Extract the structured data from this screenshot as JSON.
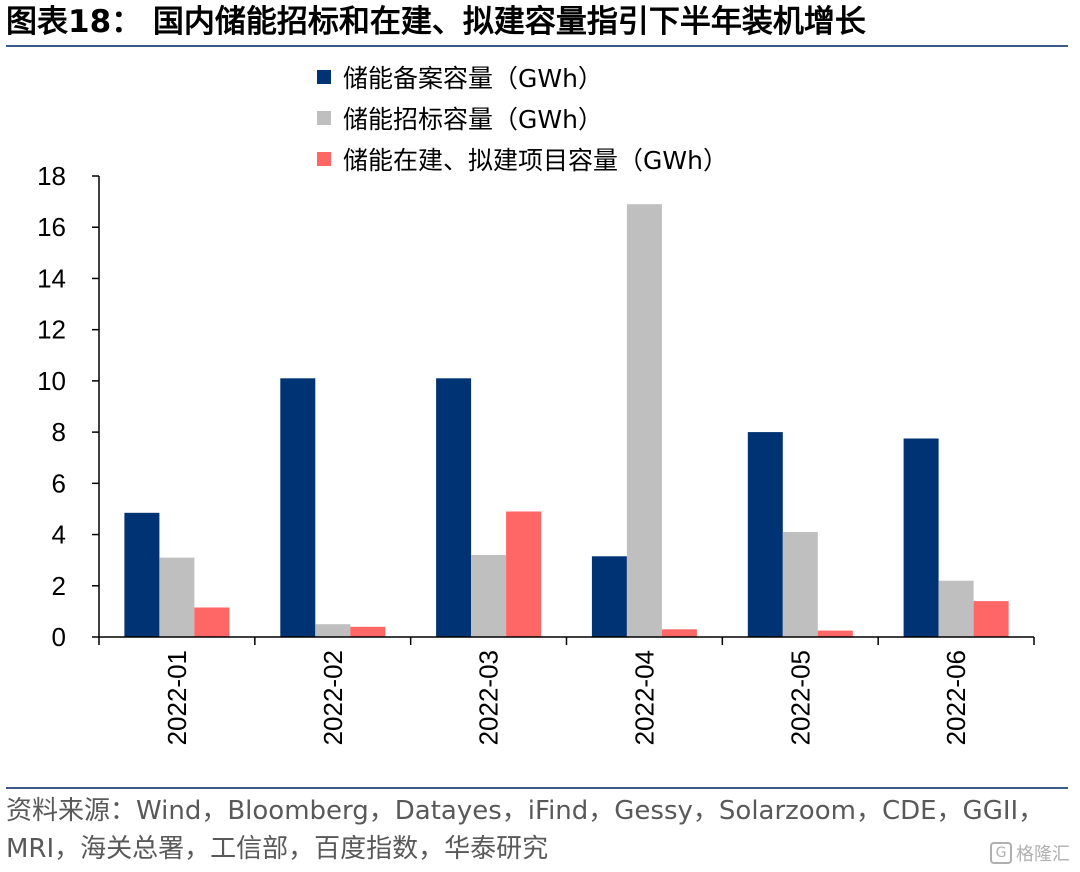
{
  "title": "图表18：  国内储能招标和在建、拟建容量指引下半年装机增长",
  "chart_data": {
    "type": "bar",
    "categories": [
      "2022-01",
      "2022-02",
      "2022-03",
      "2022-04",
      "2022-05",
      "2022-06"
    ],
    "series": [
      {
        "name": "储能备案容量（GWh）",
        "color": "#003373",
        "values": [
          4.85,
          10.1,
          10.1,
          3.15,
          8.0,
          7.75
        ]
      },
      {
        "name": "储能招标容量（GWh）",
        "color": "#bfbfbf",
        "values": [
          3.1,
          0.5,
          3.2,
          16.9,
          4.1,
          2.2
        ]
      },
      {
        "name": "储能在建、拟建项目容量（GWh）",
        "color": "#ff6666",
        "values": [
          1.15,
          0.4,
          4.9,
          0.3,
          0.25,
          1.4
        ]
      }
    ],
    "yticks": [
      "0",
      "2",
      "4",
      "6",
      "8",
      "10",
      "12",
      "14",
      "16",
      "18"
    ],
    "ylim": [
      0,
      18
    ],
    "grid": false,
    "legend_position": "top-center"
  },
  "source": "资料来源：Wind，Bloomberg，Datayes，iFind，Gessy，Solarzoom，CDE，GGII，MRI，海关总署，工信部，百度指数，华泰研究",
  "watermark": {
    "icon": "g-logo-icon",
    "text": "格隆汇"
  }
}
